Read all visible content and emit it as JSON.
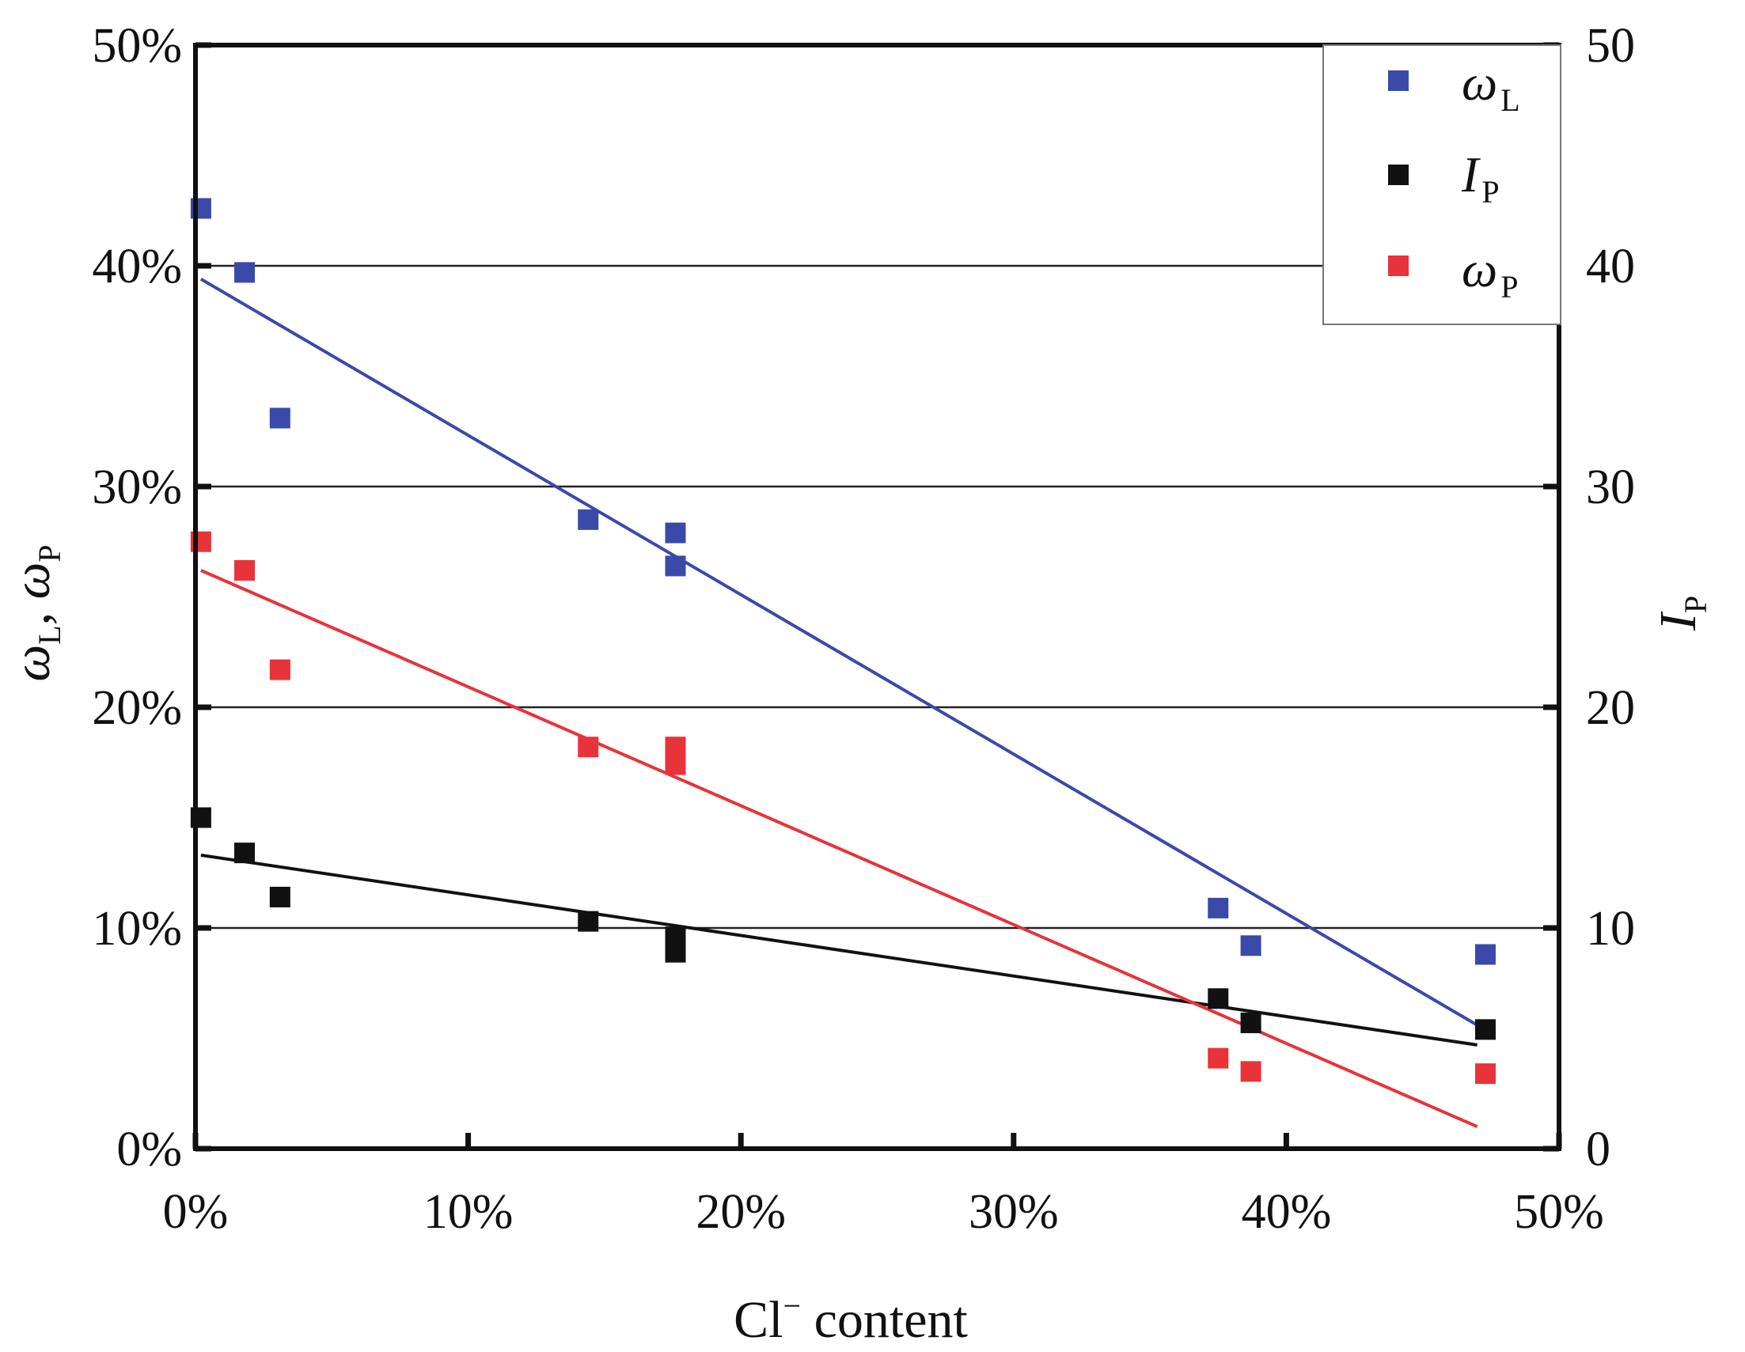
{
  "chart_data": {
    "type": "scatter",
    "xlabel": {
      "main": "Cl",
      "sup": "−",
      "rest": " content"
    },
    "ylabel_left": {
      "parts": [
        {
          "sym": "ω",
          "sub": "L"
        },
        {
          "sep": ", "
        },
        {
          "sym": "ω",
          "sub": "P"
        }
      ]
    },
    "ylabel_right": {
      "sym": "I",
      "sub": "P"
    },
    "xlim": [
      0,
      50
    ],
    "ylim_left": [
      0,
      50
    ],
    "ylim_right": [
      0,
      50
    ],
    "x_ticks": [
      "0%",
      "10%",
      "20%",
      "30%",
      "40%",
      "50%"
    ],
    "x_tick_values": [
      0,
      10,
      20,
      30,
      40,
      50
    ],
    "y_left_ticks": [
      "0%",
      "10%",
      "20%",
      "30%",
      "40%",
      "50%"
    ],
    "y_left_tick_values": [
      0,
      10,
      20,
      30,
      40,
      50
    ],
    "y_right_ticks": [
      "0",
      "10",
      "20",
      "30",
      "40",
      "50"
    ],
    "y_right_tick_values": [
      0,
      10,
      20,
      30,
      40,
      50
    ],
    "grid": "horizontal",
    "legend_position": "top-right",
    "series": [
      {
        "name": "ω",
        "name_sub": "L",
        "color": "#3b4aa8",
        "axis": "left",
        "points": [
          [
            0.2,
            42.6
          ],
          [
            1.8,
            39.7
          ],
          [
            3.1,
            33.1
          ],
          [
            14.4,
            28.5
          ],
          [
            17.6,
            27.9
          ],
          [
            17.6,
            26.4
          ],
          [
            37.5,
            10.9
          ],
          [
            38.7,
            9.2
          ],
          [
            47.3,
            8.8
          ]
        ],
        "fit": [
          [
            0.2,
            39.4
          ],
          [
            47.0,
            5.6
          ]
        ]
      },
      {
        "name": "I",
        "name_sub": "P",
        "color": "#111111",
        "axis": "right",
        "points": [
          [
            0.2,
            15.0
          ],
          [
            1.8,
            13.4
          ],
          [
            3.1,
            11.4
          ],
          [
            14.4,
            10.3
          ],
          [
            17.6,
            9.6
          ],
          [
            17.6,
            8.9
          ],
          [
            37.5,
            6.8
          ],
          [
            38.7,
            5.7
          ],
          [
            47.3,
            5.4
          ]
        ],
        "fit": [
          [
            0.2,
            13.3
          ],
          [
            47.0,
            4.7
          ]
        ]
      },
      {
        "name": "ω",
        "name_sub": "P",
        "color": "#e8333a",
        "axis": "left",
        "points": [
          [
            0.2,
            27.5
          ],
          [
            1.8,
            26.2
          ],
          [
            3.1,
            21.7
          ],
          [
            14.4,
            18.2
          ],
          [
            17.6,
            18.2
          ],
          [
            17.6,
            17.4
          ],
          [
            37.5,
            4.1
          ],
          [
            38.7,
            3.5
          ],
          [
            47.3,
            3.4
          ]
        ],
        "fit": [
          [
            0.2,
            26.2
          ],
          [
            47.0,
            1.0
          ]
        ]
      }
    ]
  }
}
